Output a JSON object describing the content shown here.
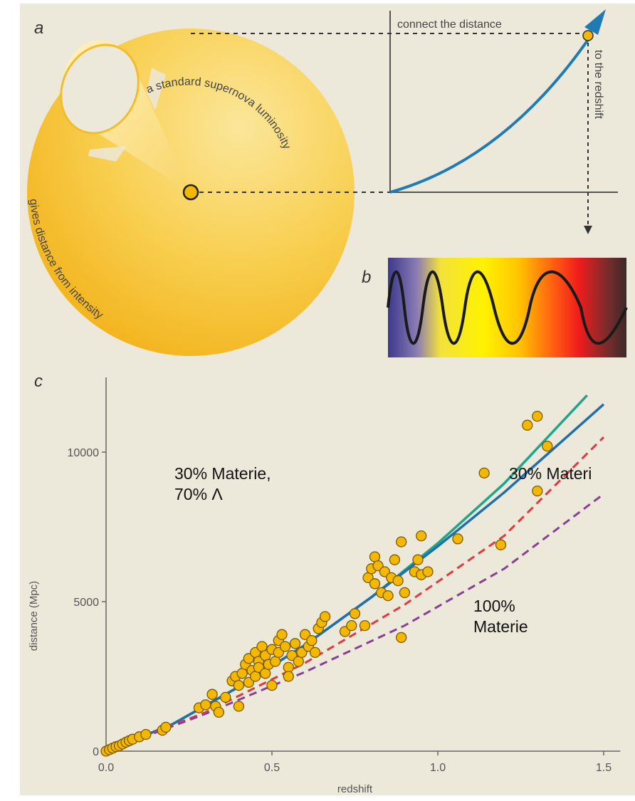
{
  "panel_a": {
    "letter": "a",
    "label_top": "connect the distance",
    "label_right": "to the redshift",
    "label_cone": "a standard supernova luminosity",
    "label_bottom": "gives distance from intensity",
    "colors": {
      "sphere": "#f6c33a",
      "curve": "#1f7bb6"
    }
  },
  "panel_b": {
    "letter": "b"
  },
  "panel_c": {
    "letter": "c"
  },
  "annotations": {
    "lambda_model": "30% Materie,\n70% Λ",
    "matter_30_cut": "30% Materi",
    "matter_100": "100%\nMaterie"
  },
  "chart_data": {
    "type": "scatter",
    "xlabel": "redshift",
    "ylabel": "distance (Mpc)",
    "xlim": [
      0,
      1.55
    ],
    "ylim": [
      0,
      12500
    ],
    "xticks": [
      "0.0",
      "0.5",
      "1.0",
      "1.5"
    ],
    "yticks": [
      "0",
      "5000",
      "10000"
    ],
    "series": [
      {
        "style": "solid",
        "color": "#1ea58a",
        "x": [
          0,
          0.2,
          0.4,
          0.6,
          0.8,
          1.0,
          1.2,
          1.45
        ],
        "values": [
          0,
          900,
          2150,
          3550,
          5150,
          6950,
          8950,
          11900
        ]
      },
      {
        "style": "solid",
        "color": "#1f6fae",
        "x": [
          0,
          0.2,
          0.4,
          0.6,
          0.8,
          1.0,
          1.2,
          1.5
        ],
        "values": [
          0,
          900,
          2150,
          3550,
          5150,
          6850,
          8650,
          11600
        ]
      },
      {
        "style": "dashed",
        "color": "#e0393e",
        "x": [
          0,
          0.3,
          0.6,
          0.9,
          1.2,
          1.5
        ],
        "values": [
          0,
          1300,
          2950,
          4900,
          7200,
          10500
        ]
      },
      {
        "style": "dashed",
        "color": "#8a3f96",
        "x": [
          0,
          0.3,
          0.6,
          0.9,
          1.2,
          1.5
        ],
        "values": [
          0,
          1250,
          2650,
          4200,
          6100,
          8600
        ]
      }
    ],
    "points": [
      [
        0.0,
        0
      ],
      [
        0.01,
        50
      ],
      [
        0.02,
        100
      ],
      [
        0.03,
        150
      ],
      [
        0.04,
        180
      ],
      [
        0.05,
        240
      ],
      [
        0.06,
        300
      ],
      [
        0.07,
        350
      ],
      [
        0.08,
        400
      ],
      [
        0.1,
        480
      ],
      [
        0.12,
        560
      ],
      [
        0.17,
        700
      ],
      [
        0.18,
        800
      ],
      [
        0.28,
        1450
      ],
      [
        0.3,
        1550
      ],
      [
        0.32,
        1900
      ],
      [
        0.33,
        1500
      ],
      [
        0.34,
        1300
      ],
      [
        0.36,
        1800
      ],
      [
        0.38,
        2350
      ],
      [
        0.39,
        2500
      ],
      [
        0.4,
        1500
      ],
      [
        0.4,
        2200
      ],
      [
        0.41,
        2600
      ],
      [
        0.42,
        2900
      ],
      [
        0.43,
        3100
      ],
      [
        0.43,
        2300
      ],
      [
        0.44,
        2700
      ],
      [
        0.45,
        3300
      ],
      [
        0.45,
        2500
      ],
      [
        0.46,
        3000
      ],
      [
        0.46,
        2800
      ],
      [
        0.47,
        3500
      ],
      [
        0.48,
        3200
      ],
      [
        0.48,
        2600
      ],
      [
        0.49,
        2900
      ],
      [
        0.5,
        3400
      ],
      [
        0.5,
        2200
      ],
      [
        0.51,
        3000
      ],
      [
        0.52,
        3700
      ],
      [
        0.52,
        3300
      ],
      [
        0.53,
        3900
      ],
      [
        0.54,
        3500
      ],
      [
        0.55,
        2800
      ],
      [
        0.55,
        2500
      ],
      [
        0.56,
        3200
      ],
      [
        0.57,
        3600
      ],
      [
        0.58,
        3000
      ],
      [
        0.59,
        3300
      ],
      [
        0.6,
        3900
      ],
      [
        0.61,
        3500
      ],
      [
        0.62,
        3700
      ],
      [
        0.63,
        3300
      ],
      [
        0.64,
        4100
      ],
      [
        0.65,
        4300
      ],
      [
        0.66,
        4500
      ],
      [
        0.72,
        4000
      ],
      [
        0.74,
        4200
      ],
      [
        0.75,
        4600
      ],
      [
        0.78,
        4200
      ],
      [
        0.79,
        5800
      ],
      [
        0.8,
        6100
      ],
      [
        0.81,
        6500
      ],
      [
        0.81,
        5600
      ],
      [
        0.82,
        6200
      ],
      [
        0.83,
        5300
      ],
      [
        0.84,
        6000
      ],
      [
        0.85,
        5200
      ],
      [
        0.86,
        5800
      ],
      [
        0.87,
        6400
      ],
      [
        0.88,
        5700
      ],
      [
        0.89,
        3800
      ],
      [
        0.89,
        7000
      ],
      [
        0.9,
        5300
      ],
      [
        0.93,
        6000
      ],
      [
        0.94,
        6400
      ],
      [
        0.95,
        7200
      ],
      [
        0.95,
        5900
      ],
      [
        0.97,
        6000
      ],
      [
        1.06,
        7100
      ],
      [
        1.14,
        9300
      ],
      [
        1.19,
        6900
      ],
      [
        1.27,
        10900
      ],
      [
        1.3,
        11200
      ],
      [
        1.3,
        8700
      ],
      [
        1.33,
        10200
      ]
    ]
  }
}
